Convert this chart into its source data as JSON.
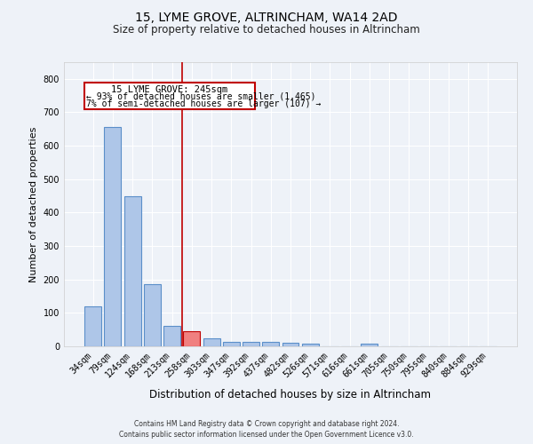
{
  "title": "15, LYME GROVE, ALTRINCHAM, WA14 2AD",
  "subtitle": "Size of property relative to detached houses in Altrincham",
  "xlabel": "Distribution of detached houses by size in Altrincham",
  "ylabel": "Number of detached properties",
  "categories": [
    "34sqm",
    "79sqm",
    "124sqm",
    "168sqm",
    "213sqm",
    "258sqm",
    "303sqm",
    "347sqm",
    "392sqm",
    "437sqm",
    "482sqm",
    "526sqm",
    "571sqm",
    "616sqm",
    "661sqm",
    "705sqm",
    "750sqm",
    "795sqm",
    "840sqm",
    "884sqm",
    "929sqm"
  ],
  "values": [
    120,
    655,
    450,
    185,
    60,
    45,
    25,
    12,
    13,
    12,
    10,
    7,
    0,
    0,
    8,
    0,
    0,
    0,
    0,
    0,
    0
  ],
  "bar_color": "#aec6e8",
  "bar_edge_color": "#5b8fc9",
  "highlight_bar_index": 5,
  "highlight_bar_color": "#f08080",
  "highlight_bar_edge_color": "#c00000",
  "vline_color": "#c00000",
  "annotation_line1": "15 LYME GROVE: 245sqm",
  "annotation_line2": "← 93% of detached houses are smaller (1,465)",
  "annotation_line3": "7% of semi-detached houses are larger (107) →",
  "annotation_box_edge_color": "#c00000",
  "ylim": [
    0,
    850
  ],
  "yticks": [
    0,
    100,
    200,
    300,
    400,
    500,
    600,
    700,
    800
  ],
  "footer_line1": "Contains HM Land Registry data © Crown copyright and database right 2024.",
  "footer_line2": "Contains public sector information licensed under the Open Government Licence v3.0.",
  "bg_color": "#eef2f8",
  "grid_color": "#ffffff",
  "title_fontsize": 10,
  "subtitle_fontsize": 8.5,
  "axis_label_fontsize": 8,
  "tick_fontsize": 7
}
